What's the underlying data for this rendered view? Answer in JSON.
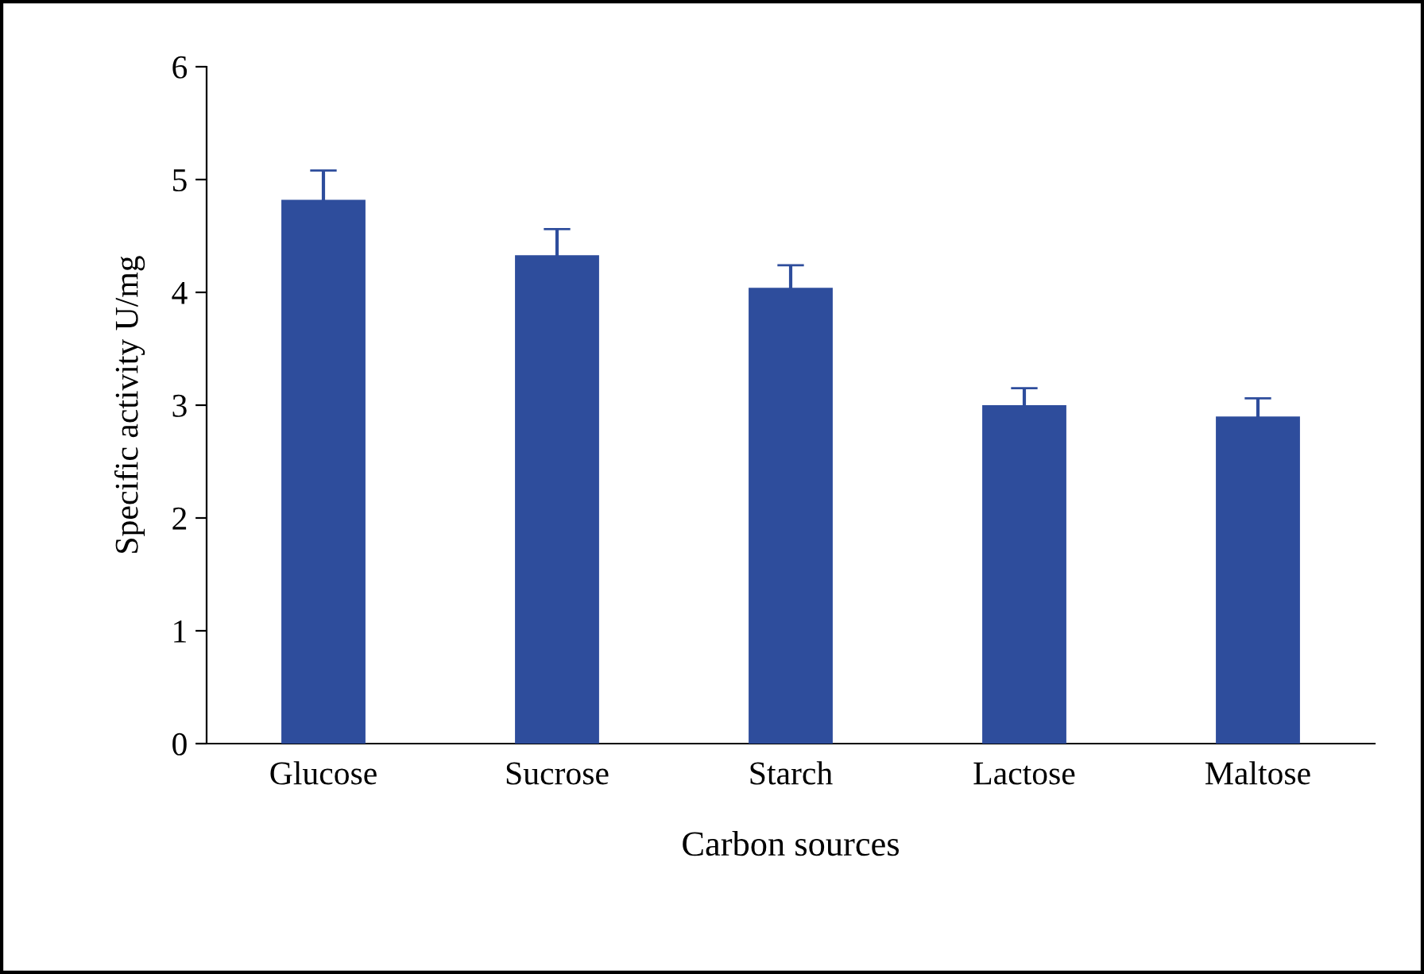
{
  "chart_data": {
    "type": "bar",
    "xlabel": "Carbon sources",
    "ylabel": "Specific activity U/mg",
    "categories": [
      "Glucose",
      "Sucrose",
      "Starch",
      "Lactose",
      "Maltose"
    ],
    "values": [
      4.82,
      4.33,
      4.04,
      3.0,
      2.9
    ],
    "errors": [
      0.26,
      0.23,
      0.2,
      0.15,
      0.16
    ],
    "color": "#2e4d9c",
    "ylim": [
      0,
      6
    ],
    "yticks": [
      0,
      1,
      2,
      3,
      4,
      5,
      6
    ],
    "grid": false,
    "legend": false
  }
}
